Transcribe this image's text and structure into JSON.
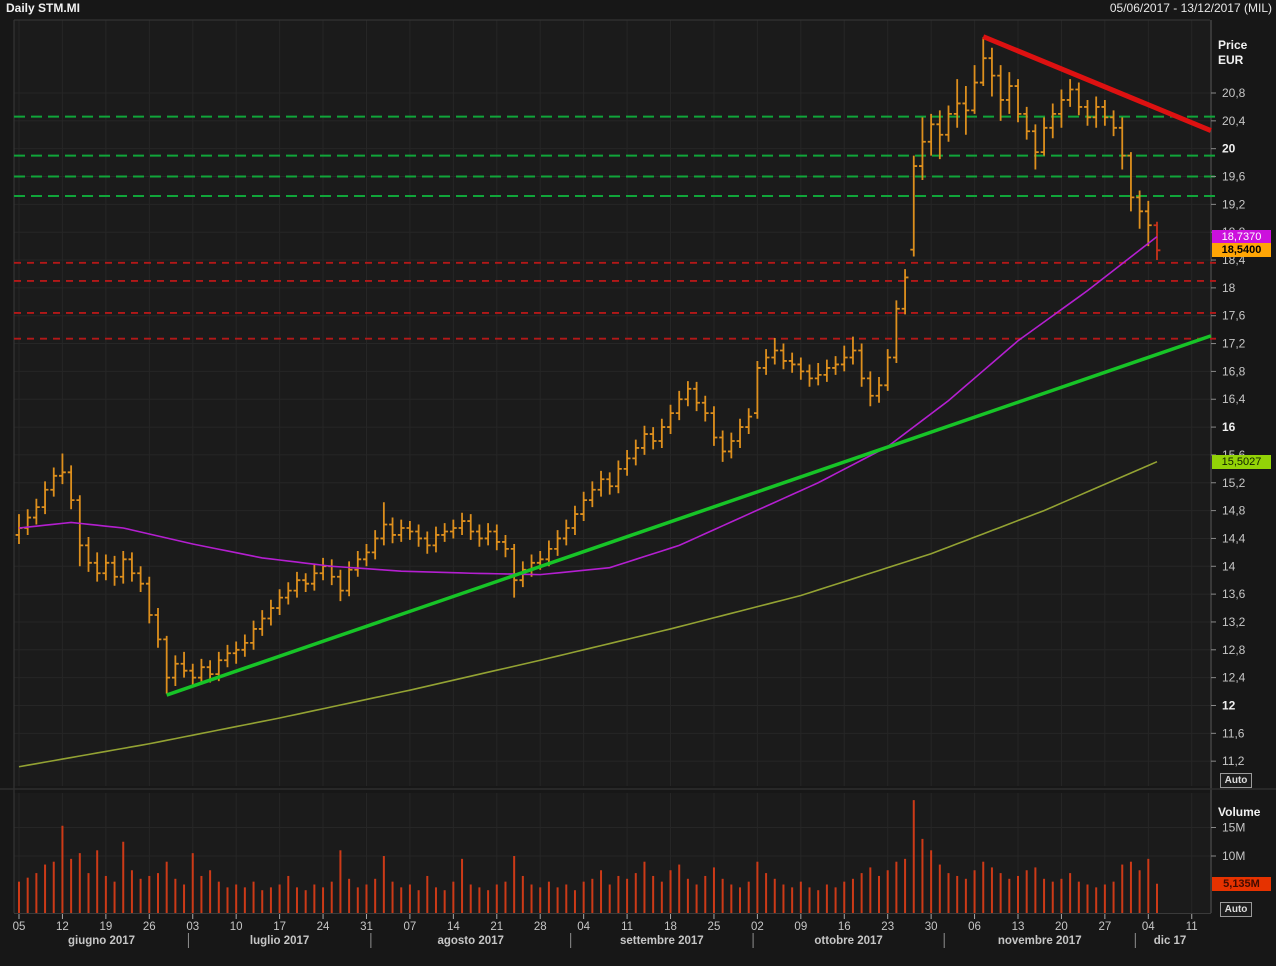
{
  "titlebar": {
    "title": "Daily STM.MI",
    "range": "05/06/2017 - 13/12/2017 (MIL)"
  },
  "price_axis": {
    "header_line1": "Price",
    "header_line2": "EUR",
    "auto_label": "Auto"
  },
  "volume_axis": {
    "header": "Volume",
    "auto_label": "Auto"
  },
  "labels": {
    "ma_fast": {
      "text": "18,7370",
      "value": 18.737,
      "bg": "#cc10dd",
      "fg": "#ffffff",
      "bold": false
    },
    "last": {
      "text": "18,5400",
      "value": 18.54,
      "bg": "#ffa505",
      "fg": "#000000",
      "bold": true
    },
    "ma_slow": {
      "text": "15,5027",
      "value": 15.5027,
      "bg": "#93d307",
      "fg": "#102000",
      "bold": false
    },
    "volume": {
      "text": "5,135M",
      "value": 5.135,
      "bg": "#e63200",
      "fg": "#420c00",
      "bold": true
    }
  },
  "chart_data": {
    "type": "ohlc-bar",
    "title": "Daily STM.MI",
    "ylabel": "Price EUR",
    "ylim": [
      11.0,
      21.9
    ],
    "grid": true,
    "bars_format": [
      "open",
      "high",
      "low",
      "close",
      "volume_millions"
    ],
    "bars": [
      [
        14.45,
        14.75,
        14.32,
        14.55,
        5.5
      ],
      [
        14.55,
        14.82,
        14.45,
        14.7,
        6.2
      ],
      [
        14.7,
        14.97,
        14.6,
        14.85,
        7.0
      ],
      [
        14.85,
        15.22,
        14.75,
        15.1,
        8.5
      ],
      [
        15.1,
        15.42,
        15.0,
        15.3,
        9.0
      ],
      [
        15.3,
        15.62,
        15.18,
        15.35,
        15.3
      ],
      [
        15.35,
        15.45,
        14.82,
        14.95,
        9.5
      ],
      [
        14.95,
        15.02,
        14.0,
        14.3,
        10.5
      ],
      [
        14.3,
        14.42,
        13.92,
        14.05,
        7.0
      ],
      [
        14.05,
        14.2,
        13.78,
        13.9,
        11.0
      ],
      [
        13.9,
        14.17,
        13.8,
        14.05,
        6.5
      ],
      [
        14.05,
        14.15,
        13.72,
        13.85,
        5.5
      ],
      [
        13.85,
        14.22,
        13.75,
        14.1,
        12.5
      ],
      [
        14.1,
        14.2,
        13.78,
        13.9,
        7.5
      ],
      [
        13.9,
        14.0,
        13.63,
        13.75,
        6.0
      ],
      [
        13.75,
        13.85,
        13.18,
        13.3,
        6.5
      ],
      [
        13.3,
        13.4,
        12.83,
        12.95,
        7.0
      ],
      [
        12.95,
        13.0,
        12.17,
        12.4,
        9.0
      ],
      [
        12.4,
        12.72,
        12.28,
        12.6,
        6.0
      ],
      [
        12.6,
        12.77,
        12.4,
        12.5,
        5.0
      ],
      [
        12.5,
        12.6,
        12.28,
        12.4,
        10.5
      ],
      [
        12.4,
        12.67,
        12.3,
        12.55,
        6.5
      ],
      [
        12.55,
        12.65,
        12.33,
        12.45,
        7.5
      ],
      [
        12.45,
        12.77,
        12.35,
        12.65,
        5.5
      ],
      [
        12.65,
        12.87,
        12.55,
        12.75,
        4.5
      ],
      [
        12.75,
        12.92,
        12.6,
        12.8,
        5.0
      ],
      [
        12.8,
        13.02,
        12.7,
        12.9,
        4.5
      ],
      [
        12.9,
        13.22,
        12.8,
        13.1,
        5.5
      ],
      [
        13.1,
        13.37,
        13.0,
        13.25,
        4.0
      ],
      [
        13.25,
        13.52,
        13.15,
        13.4,
        4.5
      ],
      [
        13.4,
        13.67,
        13.3,
        13.55,
        5.0
      ],
      [
        13.55,
        13.77,
        13.45,
        13.65,
        6.5
      ],
      [
        13.65,
        13.92,
        13.55,
        13.8,
        4.5
      ],
      [
        13.8,
        13.9,
        13.63,
        13.75,
        4.0
      ],
      [
        13.75,
        14.02,
        13.65,
        13.9,
        5.0
      ],
      [
        13.9,
        14.12,
        13.8,
        14.0,
        4.5
      ],
      [
        14.0,
        14.1,
        13.73,
        13.85,
        5.5
      ],
      [
        13.85,
        13.95,
        13.5,
        13.65,
        11.0
      ],
      [
        13.65,
        14.07,
        13.57,
        13.95,
        6.0
      ],
      [
        13.95,
        14.22,
        13.85,
        14.1,
        4.5
      ],
      [
        14.1,
        14.32,
        14.0,
        14.2,
        5.0
      ],
      [
        14.2,
        14.52,
        14.1,
        14.4,
        6.0
      ],
      [
        14.4,
        14.92,
        14.3,
        14.6,
        10.0
      ],
      [
        14.6,
        14.7,
        14.33,
        14.45,
        5.5
      ],
      [
        14.45,
        14.67,
        14.35,
        14.55,
        4.5
      ],
      [
        14.55,
        14.65,
        14.38,
        14.5,
        5.0
      ],
      [
        14.5,
        14.6,
        14.28,
        14.4,
        4.0
      ],
      [
        14.4,
        14.5,
        14.18,
        14.3,
        6.5
      ],
      [
        14.3,
        14.57,
        14.2,
        14.45,
        4.5
      ],
      [
        14.45,
        14.62,
        14.35,
        14.5,
        4.0
      ],
      [
        14.5,
        14.67,
        14.4,
        14.55,
        5.5
      ],
      [
        14.55,
        14.77,
        14.45,
        14.65,
        9.5
      ],
      [
        14.65,
        14.75,
        14.38,
        14.5,
        5.0
      ],
      [
        14.5,
        14.6,
        14.28,
        14.4,
        4.5
      ],
      [
        14.4,
        14.62,
        14.3,
        14.5,
        4.0
      ],
      [
        14.5,
        14.6,
        14.23,
        14.35,
        5.0
      ],
      [
        14.35,
        14.45,
        14.13,
        14.25,
        5.5
      ],
      [
        14.25,
        14.32,
        13.55,
        13.8,
        10.0
      ],
      [
        13.8,
        14.07,
        13.7,
        13.95,
        6.5
      ],
      [
        13.95,
        14.17,
        13.85,
        14.05,
        5.0
      ],
      [
        14.05,
        14.22,
        13.95,
        14.1,
        4.5
      ],
      [
        14.1,
        14.37,
        14.0,
        14.25,
        5.5
      ],
      [
        14.25,
        14.52,
        14.15,
        14.4,
        4.5
      ],
      [
        14.4,
        14.67,
        14.3,
        14.55,
        5.0
      ],
      [
        14.55,
        14.87,
        14.45,
        14.75,
        4.0
      ],
      [
        14.75,
        15.07,
        14.65,
        14.95,
        5.5
      ],
      [
        14.95,
        15.22,
        14.85,
        15.1,
        6.0
      ],
      [
        15.1,
        15.37,
        15.0,
        15.25,
        7.5
      ],
      [
        15.25,
        15.35,
        15.03,
        15.15,
        5.0
      ],
      [
        15.15,
        15.52,
        15.05,
        15.4,
        6.5
      ],
      [
        15.4,
        15.67,
        15.3,
        15.55,
        6.0
      ],
      [
        15.55,
        15.82,
        15.45,
        15.7,
        7.0
      ],
      [
        15.7,
        16.02,
        15.6,
        15.9,
        9.0
      ],
      [
        15.9,
        16.0,
        15.68,
        15.8,
        6.5
      ],
      [
        15.8,
        16.12,
        15.7,
        16.0,
        5.5
      ],
      [
        16.0,
        16.32,
        15.9,
        16.2,
        7.5
      ],
      [
        16.2,
        16.52,
        16.1,
        16.4,
        8.5
      ],
      [
        16.4,
        16.66,
        16.3,
        16.55,
        6.0
      ],
      [
        16.55,
        16.65,
        16.23,
        16.35,
        5.0
      ],
      [
        16.35,
        16.45,
        16.08,
        16.2,
        6.5
      ],
      [
        16.2,
        16.3,
        15.73,
        15.85,
        8.0
      ],
      [
        15.85,
        15.95,
        15.5,
        15.65,
        6.0
      ],
      [
        15.65,
        15.92,
        15.55,
        15.8,
        5.0
      ],
      [
        15.8,
        16.12,
        15.7,
        16.0,
        4.5
      ],
      [
        16.0,
        16.27,
        15.9,
        16.15,
        5.5
      ],
      [
        16.2,
        16.95,
        16.12,
        16.85,
        9.0
      ],
      [
        16.85,
        17.12,
        16.75,
        17.0,
        7.0
      ],
      [
        17.0,
        17.28,
        16.9,
        17.1,
        6.0
      ],
      [
        17.1,
        17.2,
        16.83,
        16.95,
        5.0
      ],
      [
        16.95,
        17.07,
        16.78,
        16.9,
        4.5
      ],
      [
        16.9,
        17.0,
        16.68,
        16.8,
        5.5
      ],
      [
        16.8,
        16.9,
        16.58,
        16.7,
        4.5
      ],
      [
        16.7,
        16.92,
        16.6,
        16.75,
        4.0
      ],
      [
        16.75,
        16.97,
        16.65,
        16.85,
        5.0
      ],
      [
        16.85,
        17.02,
        16.75,
        16.9,
        4.5
      ],
      [
        16.9,
        17.17,
        16.8,
        17.0,
        5.5
      ],
      [
        17.0,
        17.3,
        16.9,
        17.1,
        6.0
      ],
      [
        17.1,
        17.2,
        16.58,
        16.7,
        7.0
      ],
      [
        16.7,
        16.8,
        16.3,
        16.45,
        8.0
      ],
      [
        16.45,
        16.72,
        16.35,
        16.6,
        6.5
      ],
      [
        16.6,
        17.12,
        16.52,
        17.0,
        7.5
      ],
      [
        17.0,
        17.82,
        16.92,
        17.7,
        9.0
      ],
      [
        17.7,
        18.27,
        17.62,
        18.15,
        9.5
      ],
      [
        18.55,
        19.9,
        18.45,
        19.75,
        19.8
      ],
      [
        19.75,
        20.45,
        19.55,
        20.1,
        13.0
      ],
      [
        20.1,
        20.5,
        19.9,
        20.35,
        11.0
      ],
      [
        20.35,
        20.55,
        19.85,
        20.2,
        8.5
      ],
      [
        20.2,
        20.62,
        20.1,
        20.5,
        7.0
      ],
      [
        20.5,
        21.0,
        20.3,
        20.65,
        6.5
      ],
      [
        20.65,
        20.9,
        20.2,
        20.55,
        6.0
      ],
      [
        20.55,
        21.2,
        20.5,
        20.95,
        7.5
      ],
      [
        20.95,
        21.6,
        20.9,
        21.3,
        9.0
      ],
      [
        21.3,
        21.45,
        20.75,
        21.05,
        8.0
      ],
      [
        21.05,
        21.2,
        20.4,
        20.7,
        7.0
      ],
      [
        20.7,
        21.1,
        20.5,
        20.9,
        6.0
      ],
      [
        20.9,
        21.0,
        20.38,
        20.5,
        6.5
      ],
      [
        20.5,
        20.6,
        20.13,
        20.25,
        7.5
      ],
      [
        20.25,
        20.35,
        19.7,
        19.95,
        8.0
      ],
      [
        19.95,
        20.45,
        19.9,
        20.3,
        6.0
      ],
      [
        20.3,
        20.65,
        20.15,
        20.5,
        5.5
      ],
      [
        20.5,
        20.85,
        20.3,
        20.7,
        6.0
      ],
      [
        20.7,
        21.0,
        20.6,
        20.85,
        7.0
      ],
      [
        20.85,
        20.95,
        20.48,
        20.6,
        5.5
      ],
      [
        20.6,
        20.7,
        20.33,
        20.45,
        5.0
      ],
      [
        20.45,
        20.75,
        20.3,
        20.6,
        4.5
      ],
      [
        20.6,
        20.7,
        20.33,
        20.45,
        5.0
      ],
      [
        20.45,
        20.55,
        20.18,
        20.3,
        5.5
      ],
      [
        20.3,
        20.45,
        19.7,
        19.9,
        8.5
      ],
      [
        19.9,
        19.95,
        19.1,
        19.3,
        9.0
      ],
      [
        19.3,
        19.4,
        18.85,
        19.1,
        7.5
      ],
      [
        19.1,
        19.25,
        18.6,
        18.9,
        9.5
      ],
      [
        18.9,
        18.95,
        18.4,
        18.54,
        5.135
      ]
    ],
    "ma_fast_anchors": [
      [
        0,
        14.55
      ],
      [
        6,
        14.63
      ],
      [
        12,
        14.55
      ],
      [
        20,
        14.32
      ],
      [
        28,
        14.12
      ],
      [
        36,
        14.0
      ],
      [
        44,
        13.93
      ],
      [
        52,
        13.9
      ],
      [
        60,
        13.88
      ],
      [
        68,
        13.98
      ],
      [
        76,
        14.3
      ],
      [
        84,
        14.75
      ],
      [
        92,
        15.2
      ],
      [
        100,
        15.72
      ],
      [
        107,
        16.38
      ],
      [
        115,
        17.24
      ],
      [
        123,
        17.96
      ],
      [
        131,
        18.737
      ]
    ],
    "ma_slow_anchors": [
      [
        0,
        11.12
      ],
      [
        15,
        11.45
      ],
      [
        30,
        11.82
      ],
      [
        45,
        12.22
      ],
      [
        60,
        12.65
      ],
      [
        75,
        13.1
      ],
      [
        90,
        13.58
      ],
      [
        105,
        14.18
      ],
      [
        118,
        14.8
      ],
      [
        131,
        15.5027
      ]
    ],
    "trend_up": {
      "i1": 17,
      "p1": 12.15,
      "i2": 137.2,
      "p2": 17.31
    },
    "trend_down": {
      "i1": 111,
      "p1": 21.61,
      "i2": 137.2,
      "p2": 20.26
    },
    "resistance_levels": [
      20.46,
      19.9,
      19.6,
      19.32
    ],
    "support_levels": [
      18.36,
      18.1,
      17.64,
      17.27
    ],
    "price_ticks": [
      {
        "v": 20.8,
        "t": "20,8",
        "b": false
      },
      {
        "v": 20.4,
        "t": "20,4",
        "b": false
      },
      {
        "v": 20,
        "t": "20",
        "b": true
      },
      {
        "v": 19.6,
        "t": "19,6",
        "b": false
      },
      {
        "v": 19.2,
        "t": "19,2",
        "b": false
      },
      {
        "v": 18.8,
        "t": "18,8",
        "b": false
      },
      {
        "v": 18.4,
        "t": "18,4",
        "b": false
      },
      {
        "v": 18,
        "t": "18",
        "b": false
      },
      {
        "v": 17.6,
        "t": "17,6",
        "b": false
      },
      {
        "v": 17.2,
        "t": "17,2",
        "b": false
      },
      {
        "v": 16.8,
        "t": "16,8",
        "b": false
      },
      {
        "v": 16.4,
        "t": "16,4",
        "b": false
      },
      {
        "v": 16,
        "t": "16",
        "b": true
      },
      {
        "v": 15.6,
        "t": "15,6",
        "b": false
      },
      {
        "v": 15.2,
        "t": "15,2",
        "b": false
      },
      {
        "v": 14.8,
        "t": "14,8",
        "b": false
      },
      {
        "v": 14.4,
        "t": "14,4",
        "b": false
      },
      {
        "v": 14,
        "t": "14",
        "b": false
      },
      {
        "v": 13.6,
        "t": "13,6",
        "b": false
      },
      {
        "v": 13.2,
        "t": "13,2",
        "b": false
      },
      {
        "v": 12.8,
        "t": "12,8",
        "b": false
      },
      {
        "v": 12.4,
        "t": "12,4",
        "b": false
      },
      {
        "v": 12,
        "t": "12",
        "b": true
      },
      {
        "v": 11.6,
        "t": "11,6",
        "b": false
      },
      {
        "v": 11.2,
        "t": "11,2",
        "b": false
      }
    ],
    "volume_ticks": [
      {
        "v": 15,
        "t": "15M"
      },
      {
        "v": 10,
        "t": "10M"
      }
    ],
    "day_labels": [
      [
        "05",
        0
      ],
      [
        "12",
        5
      ],
      [
        "19",
        10
      ],
      [
        "26",
        15
      ],
      [
        "03",
        20
      ],
      [
        "10",
        25
      ],
      [
        "17",
        30
      ],
      [
        "24",
        35
      ],
      [
        "31",
        40
      ],
      [
        "07",
        45
      ],
      [
        "14",
        50
      ],
      [
        "21",
        55
      ],
      [
        "28",
        60
      ],
      [
        "04",
        65
      ],
      [
        "11",
        70
      ],
      [
        "18",
        75
      ],
      [
        "25",
        80
      ],
      [
        "02",
        85
      ],
      [
        "09",
        90
      ],
      [
        "16",
        95
      ],
      [
        "23",
        100
      ],
      [
        "30",
        105
      ],
      [
        "06",
        110
      ],
      [
        "13",
        115
      ],
      [
        "20",
        120
      ],
      [
        "27",
        125
      ],
      [
        "04",
        130
      ],
      [
        "11",
        135
      ]
    ],
    "months": [
      {
        "label": "giugno 2017",
        "start": 0,
        "end": 19
      },
      {
        "label": "luglio 2017",
        "start": 20,
        "end": 40
      },
      {
        "label": "agosto 2017",
        "start": 41,
        "end": 63
      },
      {
        "label": "settembre 2017",
        "start": 64,
        "end": 84
      },
      {
        "label": "ottobre 2017",
        "start": 85,
        "end": 106
      },
      {
        "label": "novembre 2017",
        "start": 107,
        "end": 128
      },
      {
        "label": "dic 17",
        "start": 129,
        "end": 136
      }
    ],
    "colors": {
      "bar": "#dd8f1d",
      "bar_last": "#c8321a",
      "ma_fast": "#b41fd0",
      "ma_slow": "#93a233",
      "trend_up": "#17c427",
      "trend_down": "#dd1111",
      "level_resistance": "#10a53a",
      "level_support": "#b41818",
      "volume_bar": "#cd3a17",
      "plot_bg": "#1b1b1b",
      "grid": "#262626",
      "tick_text": "#c6c6c6",
      "tick_text_bold": "#f0f0f0"
    }
  }
}
